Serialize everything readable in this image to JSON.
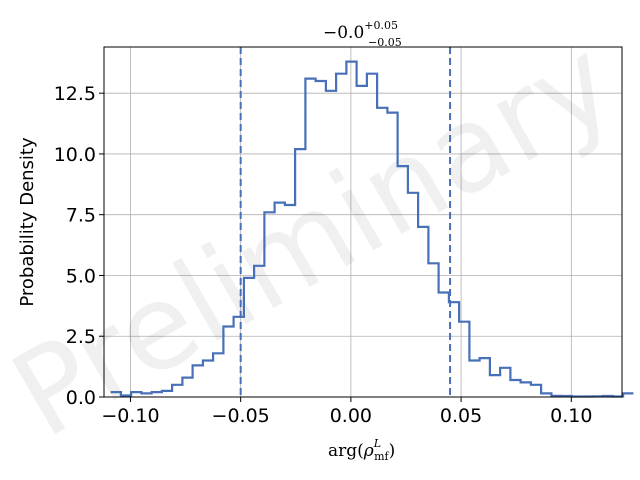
{
  "chart_data": {
    "type": "histogram",
    "title": {
      "base": "−0.0",
      "sup": "+0.05",
      "sub": "−0.05"
    },
    "xlabel": {
      "prefix": "arg(",
      "rho": "ρ",
      "sup": "L",
      "sub": "mf",
      "suffix": ")"
    },
    "ylabel": "Probability Density",
    "xlim": [
      -0.112,
      0.123
    ],
    "ylim": [
      0,
      14.4
    ],
    "xticks": [
      -0.1,
      -0.05,
      0.0,
      0.05,
      0.1
    ],
    "xtick_labels": [
      "−0.10",
      "−0.05",
      "0.00",
      "0.05",
      "0.10"
    ],
    "yticks": [
      0.0,
      2.5,
      5.0,
      7.5,
      10.0,
      12.5
    ],
    "ytick_labels": [
      "0.0",
      "2.5",
      "5.0",
      "7.5",
      "10.0",
      "12.5"
    ],
    "grid": true,
    "line_color": "#4870b8",
    "bins": {
      "start": -0.109,
      "width": 0.00465,
      "heights": [
        0.2,
        0.06,
        0.2,
        0.15,
        0.2,
        0.25,
        0.5,
        0.8,
        1.3,
        1.5,
        1.8,
        2.9,
        3.3,
        4.9,
        5.4,
        7.6,
        8.0,
        7.9,
        10.2,
        13.1,
        13.0,
        12.6,
        13.3,
        13.8,
        12.8,
        13.3,
        11.9,
        11.7,
        9.5,
        8.4,
        7.0,
        5.5,
        4.3,
        3.9,
        3.1,
        1.5,
        1.6,
        0.9,
        1.2,
        0.7,
        0.6,
        0.5,
        0.15,
        0.05,
        0.04,
        0.02,
        0.02,
        0.03,
        0.04,
        0.02,
        0.15
      ]
    },
    "credible_interval": [
      -0.05,
      0.045
    ],
    "watermark": "Preliminary"
  }
}
